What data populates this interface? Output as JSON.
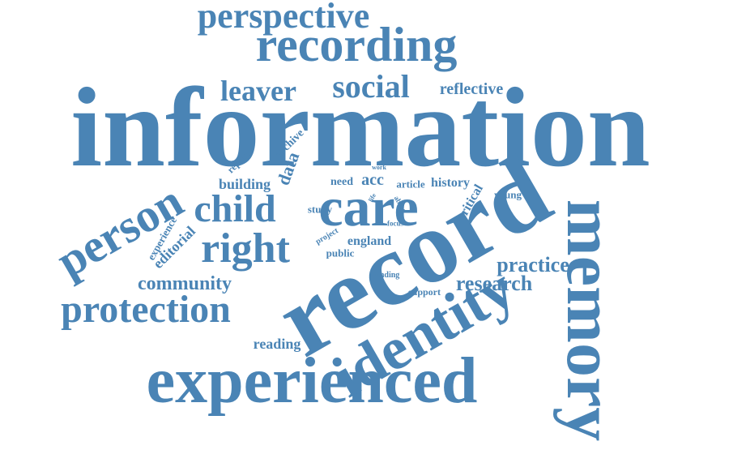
{
  "color": "#4a84b5",
  "words": {
    "information": "information",
    "record": "record",
    "memory": "memory",
    "experienced": "experienced",
    "identity": "identity",
    "care": "care",
    "recording": "recording",
    "perspective": "perspective",
    "social": "social",
    "leaver": "leaver",
    "reflective": "reflective",
    "person": "person",
    "child": "child",
    "right": "right",
    "protection": "protection",
    "community": "community",
    "research": "research",
    "practice": "practice",
    "editorial": "editorial",
    "experience": "experience",
    "reading": "reading",
    "building": "building",
    "data": "data",
    "archive": "archive",
    "report": "report",
    "need": "need",
    "acc": "acc",
    "article": "article",
    "history": "history",
    "critical": "critical",
    "young": "young",
    "study": "study",
    "england": "england",
    "public": "public",
    "project": "project",
    "finding": "finding",
    "support": "support",
    "abuse": "abuse",
    "focus": "focus",
    "work": "work",
    "life": "life"
  }
}
